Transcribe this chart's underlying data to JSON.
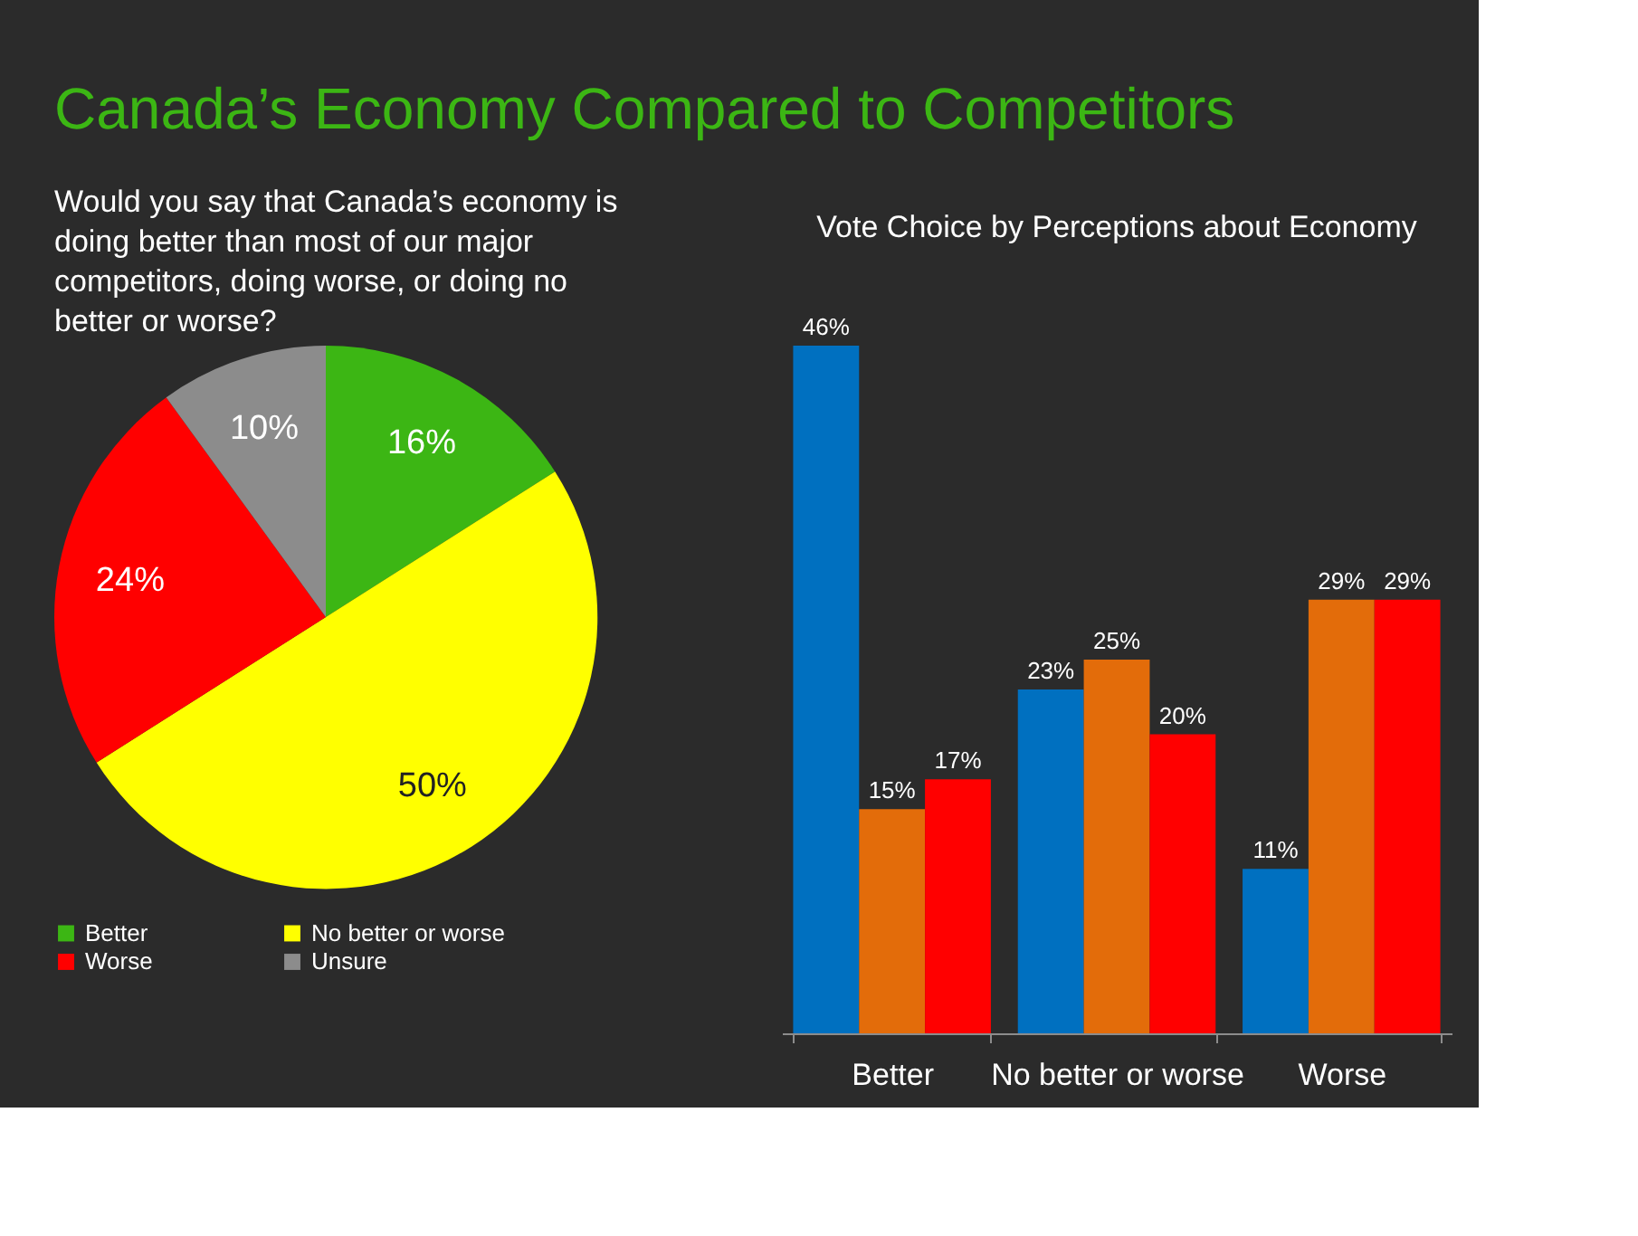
{
  "chart_data": [
    {
      "type": "pie",
      "title": "Canada’s Economy Compared to Competitors",
      "subtitle": "Would you say that Canada’s economy is doing better than most of our major competitors,  doing worse, or doing no better or worse?",
      "categories": [
        "Better",
        "No better or worse",
        "Worse",
        "Unsure"
      ],
      "values": [
        16,
        50,
        24,
        10
      ],
      "colors": [
        "#3cb614",
        "#ffff00",
        "#ff0000",
        "#8c8c8c"
      ],
      "value_labels": [
        "16%",
        "50%",
        "24%",
        "10%"
      ],
      "legend": "bottom"
    },
    {
      "type": "bar",
      "title": "Vote Choice by Perceptions about Economy",
      "categories": [
        "Better",
        "No better or worse",
        "Worse"
      ],
      "series": [
        {
          "color": "#0070c0",
          "values": [
            46,
            23,
            11
          ],
          "value_labels": [
            "46%",
            "23%",
            "11%"
          ]
        },
        {
          "color": "#e36c0a",
          "values": [
            15,
            25,
            29
          ],
          "value_labels": [
            "15%",
            "25%",
            "29%"
          ]
        },
        {
          "color": "#ff0000",
          "values": [
            17,
            20,
            29
          ],
          "value_labels": [
            "17%",
            "20%",
            "29%"
          ]
        }
      ],
      "tick_labels": "x",
      "grid": false,
      "legend": false
    }
  ]
}
